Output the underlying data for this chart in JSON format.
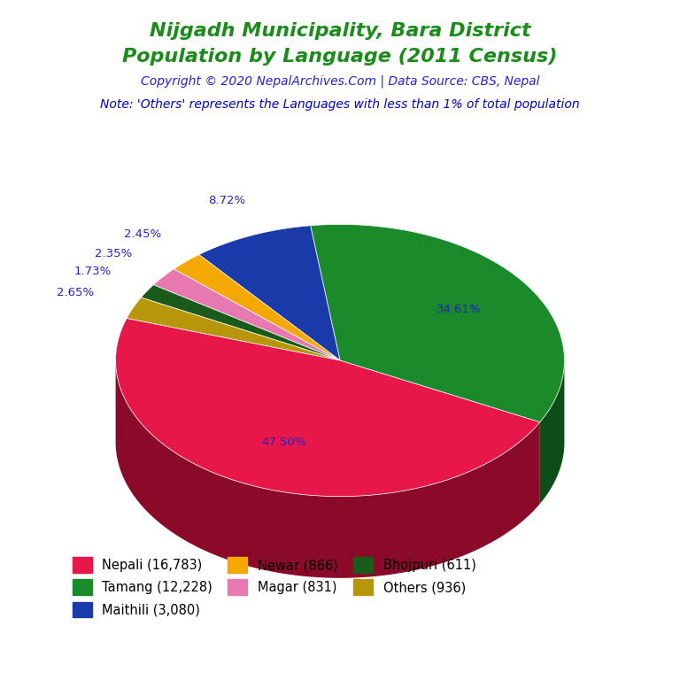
{
  "title_line1": "Nijgadh Municipality, Bara District",
  "title_line2": "Population by Language (2011 Census)",
  "title_color": "#1a8c1a",
  "copyright_text": "Copyright © 2020 NepalArchives.Com | Data Source: CBS, Nepal",
  "copyright_color": "#2222dd",
  "note_text": "Note: 'Others' represents the Languages with less than 1% of total population",
  "note_color": "#0000cc",
  "labels": [
    "Nepali",
    "Tamang",
    "Maithili",
    "Newar",
    "Magar",
    "Bhojpuri",
    "Others"
  ],
  "values": [
    16783,
    12228,
    3080,
    866,
    831,
    611,
    936
  ],
  "percentages": [
    "47.50%",
    "34.61%",
    "8.72%",
    "2.45%",
    "2.35%",
    "1.73%",
    "2.65%"
  ],
  "colors": [
    "#e8174a",
    "#1a8a2a",
    "#1a3aaa",
    "#f5a800",
    "#e878b0",
    "#1a5a1a",
    "#b8960a"
  ],
  "dark_colors": [
    "#8b0a2a",
    "#0d4d18",
    "#0d1d66",
    "#8b6000",
    "#8b3d66",
    "#0a2d0a",
    "#6b5500"
  ],
  "legend_labels": [
    "Nepali (16,783)",
    "Tamang (12,228)",
    "Maithili (3,080)",
    "Newar (866)",
    "Magar (831)",
    "Bhojpuri (611)",
    "Others (936)"
  ],
  "pct_label_color": "#2222cc",
  "background_color": "#ffffff",
  "startangle": 162,
  "depth": 0.12,
  "ellipse_ratio": 0.55
}
